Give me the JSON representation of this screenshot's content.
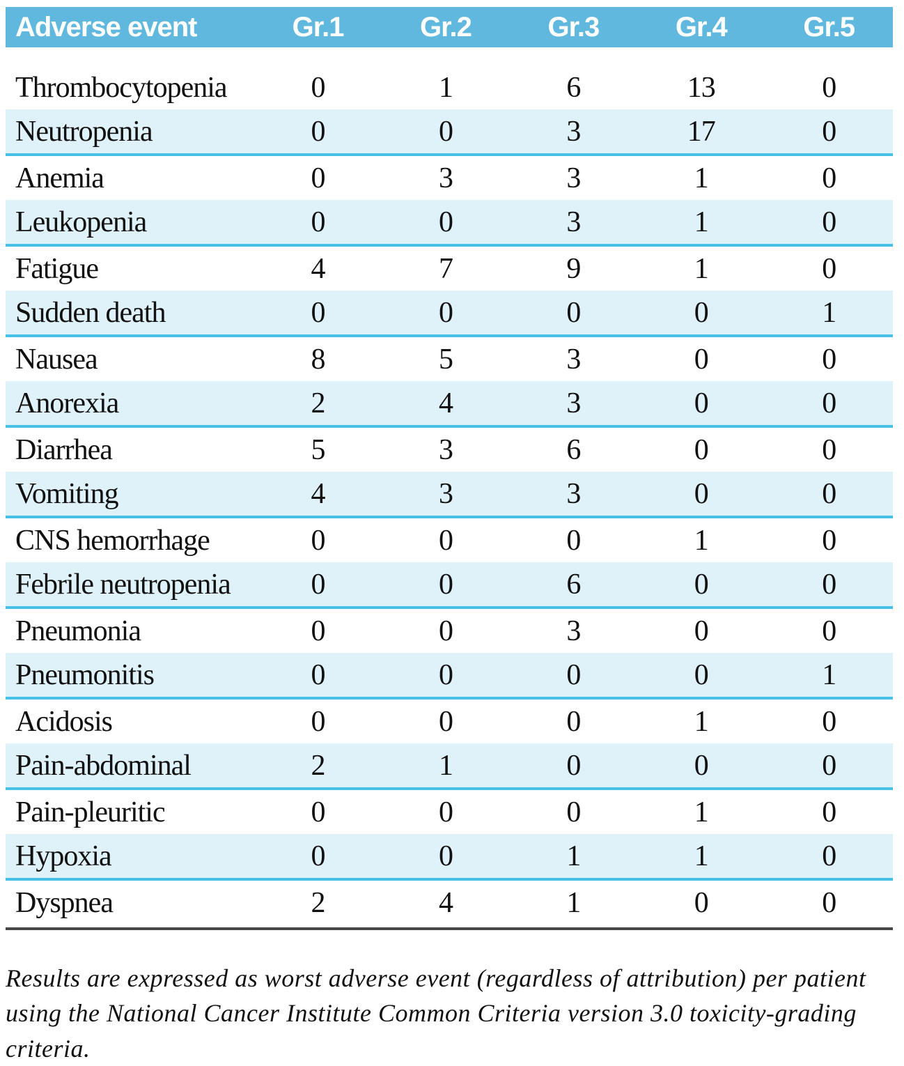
{
  "table": {
    "columns": [
      "Adverse event",
      "Gr.1",
      "Gr.2",
      "Gr.3",
      "Gr.4",
      "Gr.5"
    ],
    "rows": [
      {
        "label": "Thrombocytopenia",
        "values": [
          "0",
          "1",
          "6",
          "13",
          "0"
        ]
      },
      {
        "label": "Neutropenia",
        "values": [
          "0",
          "0",
          "3",
          "17",
          "0"
        ]
      },
      {
        "label": "Anemia",
        "values": [
          "0",
          "3",
          "3",
          "1",
          "0"
        ]
      },
      {
        "label": "Leukopenia",
        "values": [
          "0",
          "0",
          "3",
          "1",
          "0"
        ]
      },
      {
        "label": "Fatigue",
        "values": [
          "4",
          "7",
          "9",
          "1",
          "0"
        ]
      },
      {
        "label": "Sudden death",
        "values": [
          "0",
          "0",
          "0",
          "0",
          "1"
        ]
      },
      {
        "label": "Nausea",
        "values": [
          "8",
          "5",
          "3",
          "0",
          "0"
        ]
      },
      {
        "label": "Anorexia",
        "values": [
          "2",
          "4",
          "3",
          "0",
          "0"
        ]
      },
      {
        "label": "Diarrhea",
        "values": [
          "5",
          "3",
          "6",
          "0",
          "0"
        ]
      },
      {
        "label": "Vomiting",
        "values": [
          "4",
          "3",
          "3",
          "0",
          "0"
        ]
      },
      {
        "label": "CNS hemorrhage",
        "values": [
          "0",
          "0",
          "0",
          "1",
          "0"
        ]
      },
      {
        "label": "Febrile neutropenia",
        "values": [
          "0",
          "0",
          "6",
          "0",
          "0"
        ]
      },
      {
        "label": "Pneumonia",
        "values": [
          "0",
          "0",
          "3",
          "0",
          "0"
        ]
      },
      {
        "label": "Pneumonitis",
        "values": [
          "0",
          "0",
          "0",
          "0",
          "1"
        ]
      },
      {
        "label": "Acidosis",
        "values": [
          "0",
          "0",
          "0",
          "1",
          "0"
        ]
      },
      {
        "label": "Pain-abdominal",
        "values": [
          "2",
          "1",
          "0",
          "0",
          "0"
        ]
      },
      {
        "label": "Pain-pleuritic",
        "values": [
          "0",
          "0",
          "0",
          "1",
          "0"
        ]
      },
      {
        "label": "Hypoxia",
        "values": [
          "0",
          "0",
          "1",
          "1",
          "0"
        ]
      },
      {
        "label": "Dyspnea",
        "values": [
          "2",
          "4",
          "1",
          "0",
          "0"
        ]
      }
    ]
  },
  "footnote": "Results are expressed as worst adverse event (regardless of attribution) per patient using the National Cancer Institute Common Criteria version 3.0 toxicity-grading criteria.",
  "colors": {
    "header_bg": "#61b8df",
    "header_text": "#ffffff",
    "row_alt_bg": "#dff2f9",
    "separator": "#46c0e6",
    "rule": "#47474a",
    "text": "#111111"
  }
}
